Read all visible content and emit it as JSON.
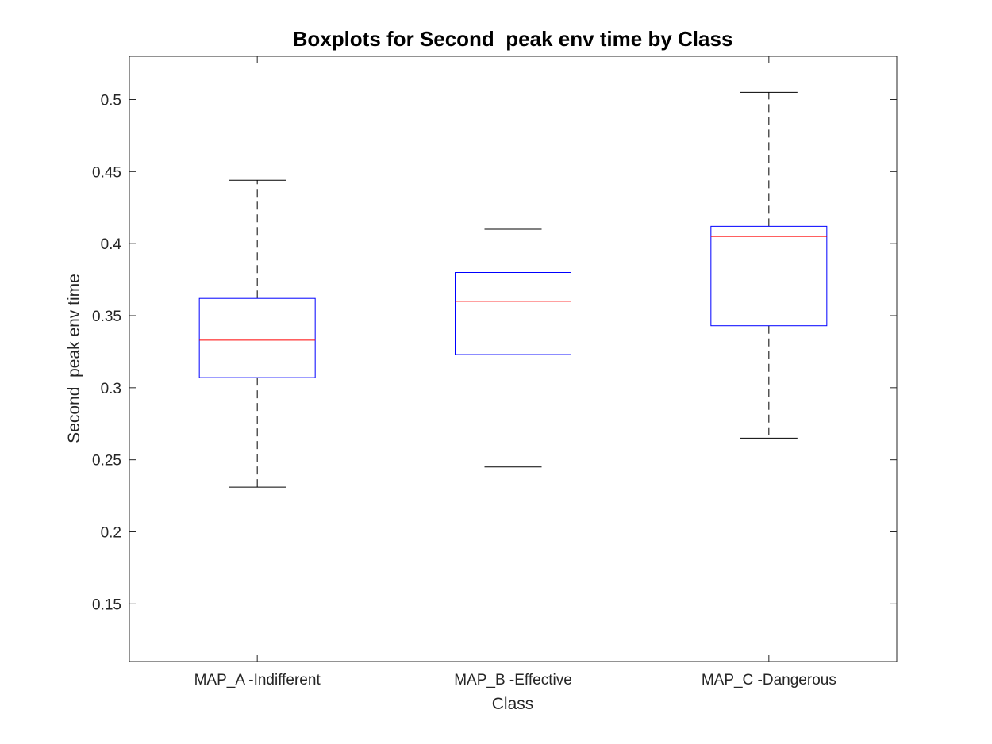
{
  "chart_data": {
    "type": "box",
    "title": "Boxplots for Second  peak env time by Class",
    "xlabel": "Class",
    "ylabel": "Second  peak env time",
    "ylim": [
      0.11,
      0.53
    ],
    "yticks": [
      0.15,
      0.2,
      0.25,
      0.3,
      0.35,
      0.4,
      0.45,
      0.5
    ],
    "ytick_labels": [
      "0.15",
      "0.2",
      "0.25",
      "0.3",
      "0.35",
      "0.4",
      "0.45",
      "0.5"
    ],
    "categories": [
      "MAP_A -Indifferent",
      "MAP_B -Effective",
      "MAP_C -Dangerous"
    ],
    "boxes": [
      {
        "whisker_low": 0.231,
        "q1": 0.307,
        "median": 0.333,
        "q3": 0.362,
        "whisker_high": 0.444
      },
      {
        "whisker_low": 0.245,
        "q1": 0.323,
        "median": 0.36,
        "q3": 0.38,
        "whisker_high": 0.41
      },
      {
        "whisker_low": 0.265,
        "q1": 0.343,
        "median": 0.405,
        "q3": 0.412,
        "whisker_high": 0.505
      }
    ],
    "colors": {
      "box": "#0000ff",
      "median": "#ff0000",
      "whisker": "#000000",
      "axes": "#262626"
    },
    "grid": false
  }
}
